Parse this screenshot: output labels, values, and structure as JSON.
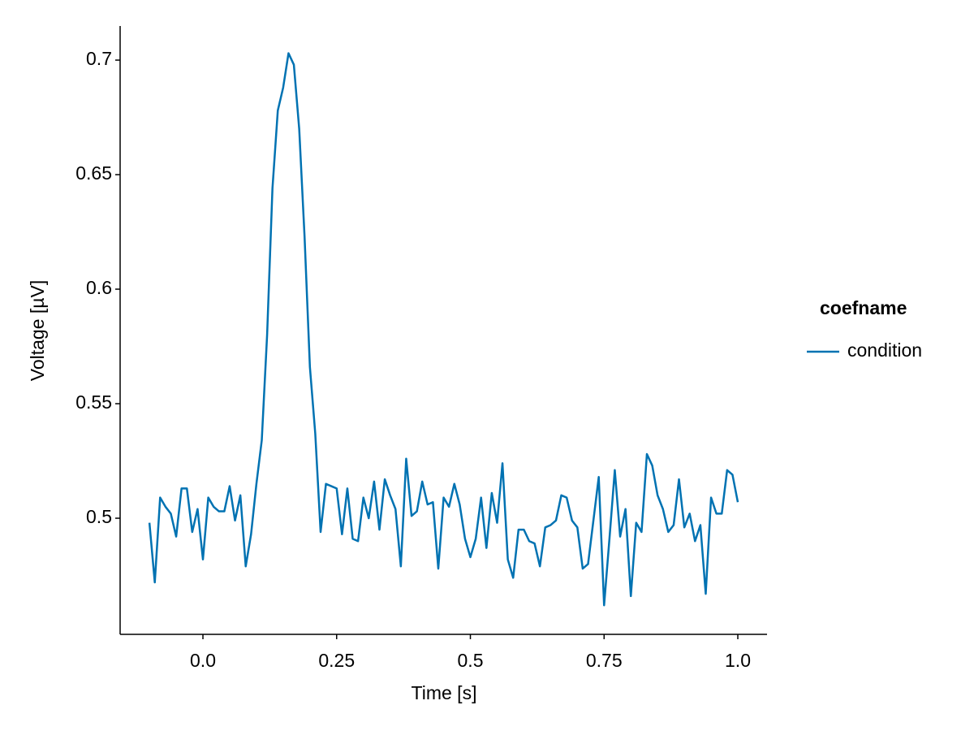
{
  "chart_data": {
    "type": "line",
    "xlabel": "Time [s]",
    "ylabel": "Voltage [µV]",
    "legend_title": "coefname",
    "legend_position": "right",
    "grid": false,
    "x": [
      -0.1,
      -0.09,
      -0.08,
      -0.07,
      -0.06,
      -0.05,
      -0.04,
      -0.03,
      -0.02,
      -0.01,
      0,
      0.01,
      0.02,
      0.03,
      0.04,
      0.05,
      0.06,
      0.07,
      0.08,
      0.09,
      0.1,
      0.11,
      0.12,
      0.13,
      0.14,
      0.15,
      0.16,
      0.17,
      0.18,
      0.19,
      0.2,
      0.21,
      0.22,
      0.23,
      0.24,
      0.25,
      0.26,
      0.27,
      0.28,
      0.29,
      0.3,
      0.31,
      0.32,
      0.33,
      0.34,
      0.35,
      0.36,
      0.37,
      0.38,
      0.39,
      0.4,
      0.41,
      0.42,
      0.43,
      0.44,
      0.45,
      0.46,
      0.47,
      0.48,
      0.49,
      0.5,
      0.51,
      0.52,
      0.53,
      0.54,
      0.55,
      0.56,
      0.57,
      0.58,
      0.59,
      0.6,
      0.61,
      0.62,
      0.63,
      0.64,
      0.65,
      0.66,
      0.67,
      0.68,
      0.69,
      0.7,
      0.71,
      0.72,
      0.73,
      0.74,
      0.75,
      0.76,
      0.77,
      0.78,
      0.79,
      0.8,
      0.81,
      0.82,
      0.83,
      0.84,
      0.85,
      0.86,
      0.87,
      0.88,
      0.89,
      0.9,
      0.91,
      0.92,
      0.93,
      0.94,
      0.95,
      0.96,
      0.97,
      0.98,
      0.99,
      1.0
    ],
    "series": [
      {
        "name": "condition",
        "color": "#0072b2",
        "values": [
          0.498,
          0.472,
          0.509,
          0.505,
          0.502,
          0.492,
          0.513,
          0.513,
          0.494,
          0.504,
          0.482,
          0.509,
          0.505,
          0.503,
          0.503,
          0.514,
          0.499,
          0.51,
          0.479,
          0.493,
          0.515,
          0.534,
          0.58,
          0.644,
          0.678,
          0.688,
          0.703,
          0.698,
          0.67,
          0.623,
          0.566,
          0.537,
          0.494,
          0.515,
          0.514,
          0.513,
          0.493,
          0.513,
          0.491,
          0.49,
          0.509,
          0.5,
          0.516,
          0.495,
          0.517,
          0.51,
          0.504,
          0.479,
          0.526,
          0.501,
          0.503,
          0.516,
          0.506,
          0.507,
          0.478,
          0.509,
          0.505,
          0.515,
          0.506,
          0.491,
          0.483,
          0.491,
          0.509,
          0.487,
          0.511,
          0.498,
          0.524,
          0.482,
          0.474,
          0.495,
          0.495,
          0.49,
          0.489,
          0.479,
          0.496,
          0.497,
          0.499,
          0.51,
          0.509,
          0.499,
          0.496,
          0.478,
          0.48,
          0.499,
          0.518,
          0.462,
          0.491,
          0.521,
          0.492,
          0.504,
          0.466,
          0.498,
          0.494,
          0.528,
          0.523,
          0.51,
          0.504,
          0.494,
          0.497,
          0.517,
          0.496,
          0.502,
          0.49,
          0.497,
          0.467,
          0.509,
          0.502,
          0.502,
          0.521,
          0.519,
          0.507
        ]
      }
    ],
    "xlim": [
      -0.1548,
      1.0546
    ],
    "xticks": [
      {
        "value": 0,
        "label": "0.0"
      },
      0.25,
      0.5,
      0.75,
      {
        "value": 1,
        "label": "1.0"
      }
    ],
    "ylim": [
      0.4493,
      0.7149
    ],
    "yticks": [
      0.5,
      0.55,
      0.6,
      0.65,
      0.7
    ]
  }
}
